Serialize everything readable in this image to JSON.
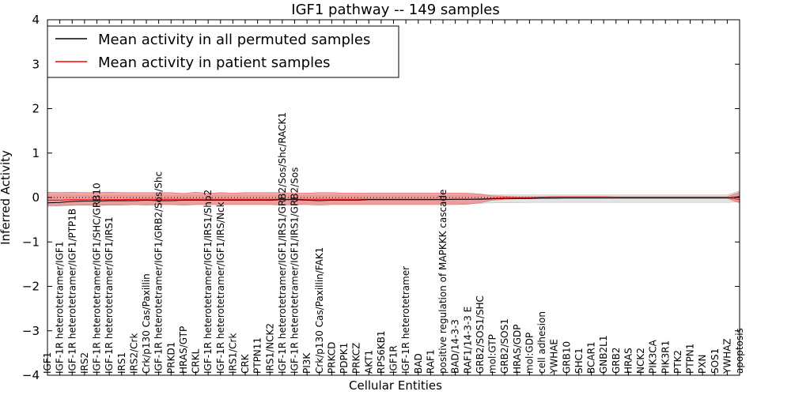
{
  "chart_data": {
    "type": "line",
    "title": "IGF1 pathway -- 149 samples",
    "xlabel": "Cellular Entities",
    "ylabel": "Inferred Activity",
    "ylim": [
      -4,
      4
    ],
    "yticks": [
      -4,
      -3,
      -2,
      -1,
      0,
      1,
      2,
      3,
      4
    ],
    "ytick_labels": [
      "−4",
      "−3",
      "−2",
      "−1",
      "0",
      "1",
      "2",
      "3",
      "4"
    ],
    "legend": {
      "placement": "top-left"
    },
    "categories": [
      "IGF1",
      "IGF-1R heterotetramer/IGF1",
      "IGF-1R heterotetramer/IGF1/PTP1B",
      "IRS2",
      "IGF-1R heterotetramer/IGF1/SHC/GRB10",
      "IGF-1R heterotetramer/IGF1/IRS1",
      "IRS1",
      "IRS2/Crk",
      "Crk/p130 Cas/Paxillin",
      "IGF-1R heterotetramer/IGF1/GRB2/Sos/Shc",
      "PRKD1",
      "HRAS/GTP",
      "CRKL",
      "IGF-1R heterotetramer/IGF1/IRS1/Shp2",
      "IGF-1R heterotetramer/IGF1/IRS/Nck",
      "IRS1/Crk",
      "CRK",
      "PTPN11",
      "IRS1/NCK2",
      "IGF-1R heterotetramer/IGF1/IRS1/GRB2/Sos/Shc/RACK1",
      "IGF-1R heterotetramer/IGF1/IRS1/GRB2/Sos",
      "PI3K",
      "Crk/p130 Cas/Paxillin/FAK1",
      "PRKCD",
      "PDPK1",
      "PRKCZ",
      "AKT1",
      "RPS6KB1",
      "IGF1R",
      "IGF-1R heterotetramer",
      "BAD",
      "RAF1",
      "positive regulation of MAPKKK cascade",
      "BAD/14-3-3",
      "RAF1/14-3-3 E",
      "GRB2/SOS1/SHC",
      "mol:GTP",
      "GRB2/SOS1",
      "HRAS/GDP",
      "mol:GDP",
      "cell adhesion",
      "YWHAE",
      "GRB10",
      "SHC1",
      "BCAR1",
      "GNB2L1",
      "GRB2",
      "HRAS",
      "NCK2",
      "PIK3CA",
      "PIK3R1",
      "PTK2",
      "PTPN1",
      "PXN",
      "SOS1",
      "YWHAZ",
      "apoptosis"
    ],
    "series": [
      {
        "name": "Mean activity in all permuted samples",
        "color": "#000000",
        "values": [
          -0.12,
          -0.11,
          -0.09,
          -0.08,
          -0.08,
          -0.07,
          -0.07,
          -0.07,
          -0.06,
          -0.07,
          -0.07,
          -0.06,
          -0.06,
          -0.06,
          -0.06,
          -0.06,
          -0.06,
          -0.06,
          -0.06,
          -0.05,
          -0.05,
          -0.06,
          -0.07,
          -0.06,
          -0.06,
          -0.06,
          -0.05,
          -0.05,
          -0.05,
          -0.05,
          -0.05,
          -0.05,
          -0.05,
          -0.04,
          -0.04,
          -0.04,
          -0.03,
          -0.02,
          -0.02,
          -0.02,
          -0.01,
          -0.01,
          -0.01,
          -0.01,
          -0.01,
          -0.01,
          -0.01,
          -0.01,
          -0.01,
          -0.01,
          -0.01,
          -0.01,
          -0.01,
          -0.01,
          -0.01,
          -0.01,
          0.02
        ],
        "band_low": [
          -0.2,
          -0.19,
          -0.18,
          -0.17,
          -0.17,
          -0.16,
          -0.16,
          -0.16,
          -0.16,
          -0.16,
          -0.16,
          -0.15,
          -0.15,
          -0.15,
          -0.15,
          -0.15,
          -0.15,
          -0.15,
          -0.15,
          -0.15,
          -0.15,
          -0.14,
          -0.14,
          -0.14,
          -0.14,
          -0.14,
          -0.14,
          -0.14,
          -0.14,
          -0.14,
          -0.14,
          -0.14,
          -0.14,
          -0.13,
          -0.13,
          -0.13,
          -0.12,
          -0.12,
          -0.12,
          -0.11,
          -0.11,
          -0.11,
          -0.11,
          -0.11,
          -0.11,
          -0.11,
          -0.11,
          -0.11,
          -0.11,
          -0.11,
          -0.11,
          -0.11,
          -0.11,
          -0.11,
          -0.11,
          -0.11,
          -0.1
        ],
        "band_high": [
          0.06,
          0.06,
          0.05,
          0.05,
          0.05,
          0.05,
          0.05,
          0.05,
          0.05,
          0.05,
          0.05,
          0.05,
          0.05,
          0.05,
          0.05,
          0.05,
          0.05,
          0.05,
          0.05,
          0.05,
          0.05,
          0.05,
          0.05,
          0.05,
          0.05,
          0.05,
          0.05,
          0.05,
          0.05,
          0.05,
          0.05,
          0.05,
          0.05,
          0.05,
          0.06,
          0.06,
          0.06,
          0.06,
          0.06,
          0.06,
          0.06,
          0.06,
          0.06,
          0.06,
          0.06,
          0.06,
          0.06,
          0.06,
          0.06,
          0.06,
          0.06,
          0.06,
          0.06,
          0.06,
          0.06,
          0.06,
          0.15
        ]
      },
      {
        "name": "Mean activity in patient samples",
        "color": "#ff0000",
        "values": [
          -0.06,
          -0.06,
          -0.05,
          -0.05,
          -0.05,
          -0.05,
          -0.05,
          -0.04,
          -0.04,
          -0.04,
          -0.04,
          -0.04,
          -0.04,
          -0.04,
          -0.04,
          -0.04,
          -0.04,
          -0.04,
          -0.04,
          -0.04,
          -0.04,
          -0.04,
          -0.04,
          -0.04,
          -0.04,
          -0.04,
          -0.04,
          -0.04,
          -0.04,
          -0.04,
          -0.04,
          -0.04,
          -0.04,
          -0.04,
          -0.04,
          -0.03,
          -0.02,
          -0.01,
          -0.01,
          -0.01,
          0.0,
          0.0,
          0.0,
          0.0,
          0.0,
          0.0,
          0.0,
          0.0,
          0.0,
          0.0,
          0.0,
          0.0,
          0.0,
          0.0,
          0.0,
          0.0,
          -0.05
        ],
        "band_low": [
          -0.18,
          -0.18,
          -0.17,
          -0.17,
          -0.18,
          -0.17,
          -0.17,
          -0.16,
          -0.17,
          -0.16,
          -0.16,
          -0.17,
          -0.16,
          -0.16,
          -0.16,
          -0.16,
          -0.16,
          -0.16,
          -0.16,
          -0.17,
          -0.16,
          -0.16,
          -0.17,
          -0.16,
          -0.16,
          -0.16,
          -0.16,
          -0.16,
          -0.16,
          -0.16,
          -0.16,
          -0.16,
          -0.16,
          -0.16,
          -0.15,
          -0.12,
          -0.06,
          -0.04,
          -0.03,
          -0.03,
          -0.03,
          -0.03,
          -0.02,
          -0.02,
          -0.02,
          -0.02,
          -0.02,
          -0.02,
          -0.02,
          -0.02,
          -0.02,
          -0.02,
          -0.02,
          -0.02,
          -0.02,
          -0.02,
          -0.12
        ],
        "band_high": [
          0.12,
          0.11,
          0.12,
          0.11,
          0.11,
          0.12,
          0.11,
          0.11,
          0.11,
          0.11,
          0.11,
          0.09,
          0.12,
          0.09,
          0.11,
          0.1,
          0.11,
          0.11,
          0.11,
          0.11,
          0.1,
          0.1,
          0.11,
          0.11,
          0.1,
          0.1,
          0.1,
          0.1,
          0.1,
          0.1,
          0.1,
          0.1,
          0.1,
          0.1,
          0.1,
          0.08,
          0.04,
          0.03,
          0.02,
          0.02,
          0.02,
          0.03,
          0.03,
          0.03,
          0.03,
          0.03,
          0.02,
          0.02,
          0.02,
          0.02,
          0.02,
          0.02,
          0.02,
          0.02,
          0.02,
          0.02,
          0.12
        ]
      }
    ],
    "reference_line": {
      "y": 0,
      "style": "dotted",
      "color": "#000000"
    },
    "band_colors": {
      "permuted": "#d9d9d9",
      "patient": "#f08080"
    }
  }
}
